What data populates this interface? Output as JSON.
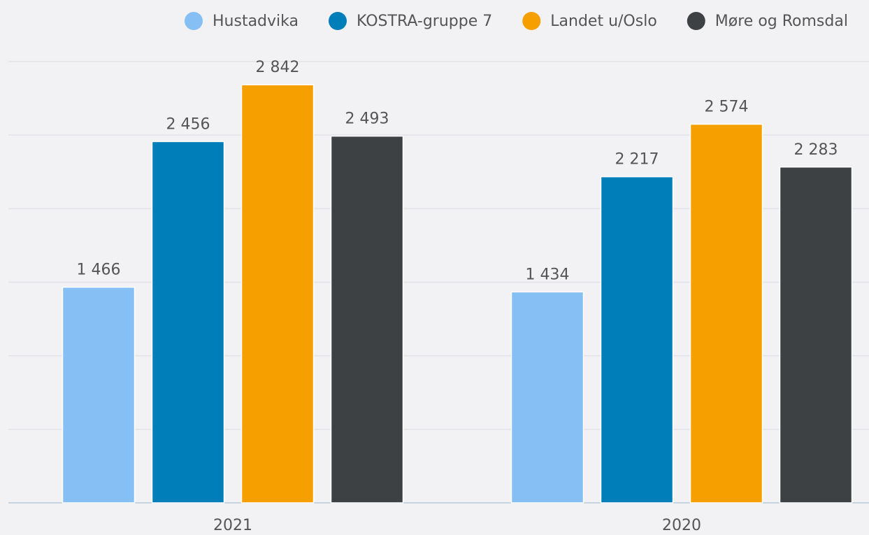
{
  "chart_data": {
    "type": "bar",
    "categories": [
      "2021",
      "2020"
    ],
    "series": [
      {
        "name": "Hustadvika",
        "color": "#85bff3",
        "values": [
          1466,
          1434
        ],
        "value_labels": [
          "1 466",
          "1 434"
        ]
      },
      {
        "name": "KOSTRA-gruppe 7",
        "color": "#007eb9",
        "values": [
          2456,
          2217
        ],
        "value_labels": [
          "2 456",
          "2 217"
        ]
      },
      {
        "name": "Landet u/Oslo",
        "color": "#f5a000",
        "values": [
          2842,
          2574
        ],
        "value_labels": [
          "2 842",
          "2 574"
        ]
      },
      {
        "name": "Møre og Romsdal",
        "color": "#3d4143",
        "values": [
          2493,
          2283
        ],
        "value_labels": [
          "2 493",
          "2 283"
        ]
      }
    ],
    "ylim": [
      0,
      3000
    ],
    "yticks": [
      0,
      500,
      1000,
      1500,
      2000,
      2500,
      3000
    ],
    "grid": true,
    "legend": "top"
  }
}
